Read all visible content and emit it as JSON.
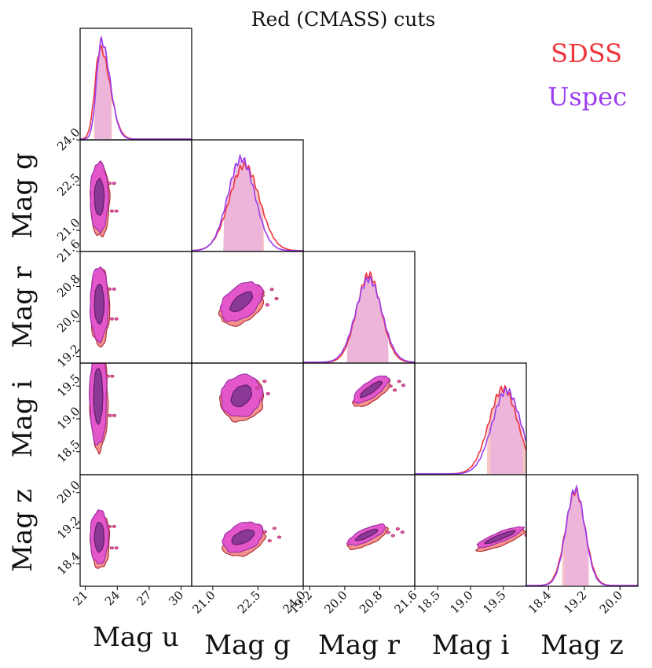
{
  "chart_data": {
    "type": "corner",
    "title": "Red (CMASS) cuts",
    "legend": [
      {
        "label": "SDSS",
        "color": "#f0343c"
      },
      {
        "label": "Uspec",
        "color": "#9b3cf0"
      }
    ],
    "fill_colors": {
      "pink": "#e253cf",
      "salmon": "#f4948c",
      "purple": "#8a3a96",
      "edge": "#b0303c",
      "hist_fill": "#e8afe0"
    },
    "parameters": [
      "Mag u",
      "Mag g",
      "Mag r",
      "Mag i",
      "Mag z"
    ],
    "ranges": [
      [
        20.5,
        31.0
      ],
      [
        20.3,
        24.0
      ],
      [
        19.05,
        21.6
      ],
      [
        18.15,
        19.85
      ],
      [
        17.9,
        20.4
      ]
    ],
    "ticks": [
      [
        21,
        24,
        27,
        30
      ],
      [
        21.0,
        22.5,
        24.0
      ],
      [
        19.2,
        20.0,
        20.8,
        21.6
      ],
      [
        18.5,
        19.0,
        19.5
      ],
      [
        18.4,
        19.2,
        20.0
      ]
    ],
    "tick_labels": [
      [
        "21",
        "24",
        "27",
        "30"
      ],
      [
        "21.0",
        "22.5",
        "24.0"
      ],
      [
        "19.2",
        "20.0",
        "20.8",
        "21.6"
      ],
      [
        "18.5",
        "19.0",
        "19.5"
      ],
      [
        "18.4",
        "19.2",
        "20.0"
      ]
    ],
    "marginals": [
      {
        "param": "Mag u",
        "SDSS": {
          "mean": 22.4,
          "sd": 0.5,
          "peak": 0.85,
          "tail": 1.8,
          "shade": [
            21.8,
            23.5
          ]
        },
        "Uspec": {
          "mean": 22.5,
          "sd": 0.45,
          "peak": 0.92,
          "tail": 1.8,
          "shade": [
            21.9,
            23.4
          ]
        }
      },
      {
        "param": "Mag g",
        "SDSS": {
          "mean": 22.05,
          "sd": 0.5,
          "peak": 0.8,
          "shade": [
            21.35,
            22.7
          ]
        },
        "Uspec": {
          "mean": 21.95,
          "sd": 0.45,
          "peak": 0.86,
          "shade": [
            21.35,
            22.65
          ]
        }
      },
      {
        "param": "Mag r",
        "SDSS": {
          "mean": 20.55,
          "sd": 0.28,
          "peak": 0.82,
          "shade": [
            20.05,
            21.0
          ]
        },
        "Uspec": {
          "mean": 20.55,
          "sd": 0.3,
          "peak": 0.78,
          "shade": [
            20.05,
            21.0
          ]
        }
      },
      {
        "param": "Mag i",
        "SDSS": {
          "mean": 19.5,
          "sd": 0.22,
          "peak": 0.8,
          "shade": [
            19.25,
            19.85
          ]
        },
        "Uspec": {
          "mean": 19.55,
          "sd": 0.22,
          "peak": 0.78,
          "shade": [
            19.3,
            19.8
          ]
        }
      },
      {
        "param": "Mag z",
        "SDSS": {
          "mean": 19.0,
          "sd": 0.22,
          "peak": 0.88,
          "shade": [
            18.7,
            19.3
          ]
        },
        "Uspec": {
          "mean": 19.0,
          "sd": 0.21,
          "peak": 0.9,
          "shade": [
            18.75,
            19.3
          ]
        }
      }
    ],
    "contours": [
      {
        "x": "Mag u",
        "y": "Mag g",
        "center": [
          22.3,
          22.1
        ],
        "outer": [
          1.7,
          1.15
        ],
        "inner": [
          0.9,
          0.6
        ],
        "angle": 0
      },
      {
        "x": "Mag u",
        "y": "Mag r",
        "center": [
          22.3,
          20.4
        ],
        "outer": [
          1.7,
          0.85
        ],
        "inner": [
          0.9,
          0.45
        ],
        "angle": 0
      },
      {
        "x": "Mag u",
        "y": "Mag i",
        "center": [
          22.2,
          19.35
        ],
        "outer": [
          1.6,
          0.75
        ],
        "inner": [
          0.85,
          0.42
        ],
        "angle": 0
      },
      {
        "x": "Mag u",
        "y": "Mag z",
        "center": [
          22.3,
          19.0
        ],
        "outer": [
          1.7,
          0.6
        ],
        "inner": [
          0.9,
          0.33
        ],
        "angle": 0
      },
      {
        "x": "Mag g",
        "y": "Mag r",
        "center": [
          21.95,
          20.45
        ],
        "outer": [
          1.6,
          0.35
        ],
        "inner": [
          0.9,
          0.14
        ],
        "angle": 40
      },
      {
        "x": "Mag g",
        "y": "Mag i",
        "center": [
          21.95,
          19.35
        ],
        "outer": [
          1.45,
          0.3
        ],
        "inner": [
          0.8,
          0.13
        ],
        "angle": 50
      },
      {
        "x": "Mag g",
        "y": "Mag z",
        "center": [
          22.0,
          19.0
        ],
        "outer": [
          1.4,
          0.3
        ],
        "inner": [
          0.8,
          0.13
        ],
        "angle": 25
      },
      {
        "x": "Mag r",
        "y": "Mag i",
        "center": [
          20.6,
          19.45
        ],
        "outer": [
          0.95,
          0.12
        ],
        "inner": [
          0.6,
          0.05
        ],
        "angle": 35
      },
      {
        "x": "Mag r",
        "y": "Mag z",
        "center": [
          20.5,
          19.05
        ],
        "outer": [
          0.95,
          0.14
        ],
        "inner": [
          0.55,
          0.06
        ],
        "angle": 25
      },
      {
        "x": "Mag i",
        "y": "Mag z",
        "center": [
          19.45,
          19.0
        ],
        "outer": [
          0.75,
          0.11
        ],
        "inner": [
          0.5,
          0.045
        ],
        "angle": 22
      }
    ]
  }
}
